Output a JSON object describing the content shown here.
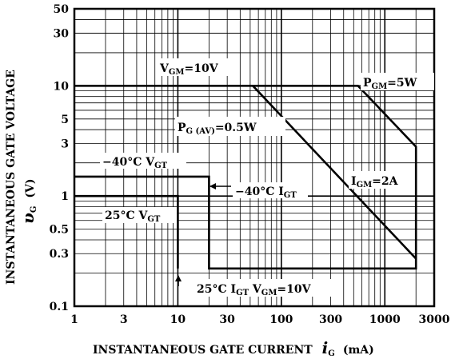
{
  "chart_data": {
    "type": "line",
    "x_scale": "log",
    "y_scale": "log",
    "xlim": [
      1,
      3000
    ],
    "ylim": [
      0.1,
      50
    ],
    "grid": true,
    "x_ticks": [
      "1",
      "3",
      "10",
      "30",
      "100",
      "300",
      "1000",
      "3000"
    ],
    "x_tick_values": [
      1,
      3,
      10,
      30,
      100,
      300,
      1000,
      3000
    ],
    "y_ticks": [
      "50",
      "30",
      "10",
      "5",
      "3",
      "1",
      "0.5",
      "0.3",
      "0.1"
    ],
    "y_tick_values": [
      50,
      30,
      10,
      5,
      3,
      1,
      0.5,
      0.3,
      0.1
    ],
    "xlabel": {
      "text": "INSTANTANEOUS GATE CURRENT",
      "symbol": "i",
      "symbol_sub": "G",
      "unit": "(mA)"
    },
    "ylabel": {
      "text": "INSTANTANEOUS GATE VOLTAGE",
      "symbol": "υ",
      "symbol_sub": "G",
      "unit": "(V)"
    },
    "series": [
      {
        "points": [
          [
            1,
            10
          ],
          [
            550,
            10
          ],
          [
            2000,
            2.8
          ],
          [
            2000,
            0.22
          ],
          [
            20,
            0.22
          ],
          [
            20,
            1.5
          ],
          [
            1,
            1.5
          ]
        ]
      },
      {
        "points": [
          [
            1,
            1
          ],
          [
            10,
            1
          ],
          [
            10,
            0.22
          ]
        ]
      },
      {
        "points": [
          [
            53,
            10
          ],
          [
            2000,
            0.27
          ]
        ]
      }
    ],
    "annotations": {
      "vgm_top": {
        "main": "V",
        "sub": "GM",
        "rest": "=10V"
      },
      "pgm": {
        "main": "P",
        "sub": "GM",
        "rest": "=5W"
      },
      "pgav": {
        "main": "P",
        "sub": "G (AV)",
        "rest": "=0.5W"
      },
      "vgt_m40": {
        "main": "−40°C V",
        "sub": "GT",
        "rest": ""
      },
      "igt_m40": {
        "main": "−40°C I",
        "sub": "GT",
        "rest": ""
      },
      "igm": {
        "main": "I",
        "sub": "GM",
        "rest": "=2A"
      },
      "vgt_25": {
        "main": "25°C V",
        "sub": "GT",
        "rest": ""
      },
      "igt_25": {
        "main": "25°C I",
        "sub": "GT",
        "rest": " V",
        "sub2": "GM",
        "rest2": "=10V"
      }
    }
  }
}
